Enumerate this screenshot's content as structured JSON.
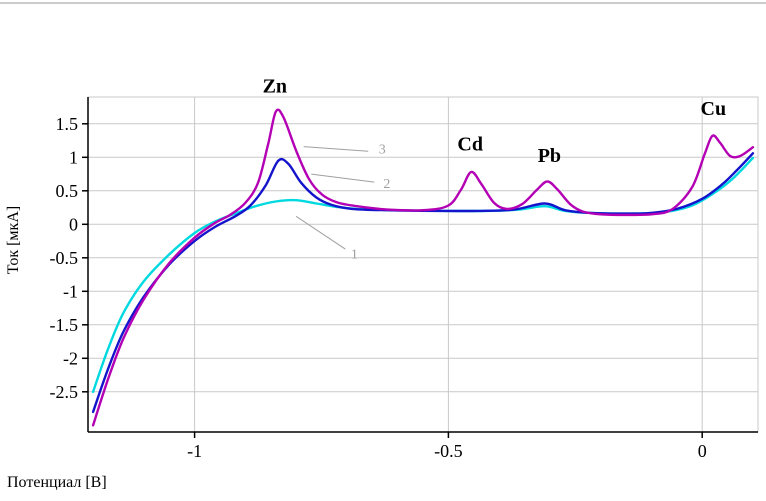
{
  "figure": {
    "top_border": true
  },
  "chart_data": {
    "type": "line",
    "title": "",
    "xlabel": "Потенциал [В]",
    "ylabel": "Ток [мкА]",
    "xlim": [
      -1.21,
      0.11
    ],
    "ylim": [
      -3.1,
      1.9
    ],
    "grid": true,
    "legend_position": "none",
    "colors": {
      "grid": "#c9c9c9",
      "axis": "#000000",
      "leader": "#9f9f9f",
      "background": "#ffffff"
    },
    "x_ticks": [
      {
        "v": -1,
        "label": "-1"
      },
      {
        "v": -0.5,
        "label": "-0.5"
      },
      {
        "v": 0,
        "label": "0"
      }
    ],
    "y_ticks": [
      {
        "v": 1.5,
        "label": "1.5"
      },
      {
        "v": 1,
        "label": "1"
      },
      {
        "v": 0.5,
        "label": "0.5"
      },
      {
        "v": 0,
        "label": "0"
      },
      {
        "v": -0.5,
        "label": "-0.5"
      },
      {
        "v": -1,
        "label": "-1"
      },
      {
        "v": -1.5,
        "label": "-1.5"
      },
      {
        "v": -2,
        "label": "-2"
      },
      {
        "v": -2.5,
        "label": "-2.5"
      }
    ],
    "series": [
      {
        "name": "1",
        "color": "#00d9e0",
        "points": [
          [
            -1.2,
            -2.5
          ],
          [
            -1.17,
            -1.85
          ],
          [
            -1.14,
            -1.32
          ],
          [
            -1.1,
            -0.85
          ],
          [
            -1.05,
            -0.45
          ],
          [
            -1.0,
            -0.13
          ],
          [
            -0.96,
            0.04
          ],
          [
            -0.92,
            0.16
          ],
          [
            -0.88,
            0.27
          ],
          [
            -0.84,
            0.34
          ],
          [
            -0.8,
            0.36
          ],
          [
            -0.76,
            0.31
          ],
          [
            -0.72,
            0.26
          ],
          [
            -0.68,
            0.23
          ],
          [
            -0.6,
            0.21
          ],
          [
            -0.5,
            0.2
          ],
          [
            -0.42,
            0.2
          ],
          [
            -0.36,
            0.22
          ],
          [
            -0.31,
            0.27
          ],
          [
            -0.27,
            0.2
          ],
          [
            -0.22,
            0.17
          ],
          [
            -0.15,
            0.16
          ],
          [
            -0.1,
            0.17
          ],
          [
            -0.06,
            0.2
          ],
          [
            -0.02,
            0.28
          ],
          [
            0.02,
            0.45
          ],
          [
            0.06,
            0.68
          ],
          [
            0.1,
            0.99
          ]
        ]
      },
      {
        "name": "2",
        "color": "#1414cc",
        "points": [
          [
            -1.2,
            -2.8
          ],
          [
            -1.17,
            -2.15
          ],
          [
            -1.14,
            -1.6
          ],
          [
            -1.1,
            -1.08
          ],
          [
            -1.05,
            -0.6
          ],
          [
            -1.0,
            -0.25
          ],
          [
            -0.96,
            -0.04
          ],
          [
            -0.92,
            0.12
          ],
          [
            -0.89,
            0.28
          ],
          [
            -0.86,
            0.58
          ],
          [
            -0.835,
            0.95
          ],
          [
            -0.815,
            0.9
          ],
          [
            -0.79,
            0.62
          ],
          [
            -0.76,
            0.4
          ],
          [
            -0.73,
            0.29
          ],
          [
            -0.69,
            0.23
          ],
          [
            -0.62,
            0.21
          ],
          [
            -0.52,
            0.2
          ],
          [
            -0.44,
            0.2
          ],
          [
            -0.37,
            0.22
          ],
          [
            -0.31,
            0.31
          ],
          [
            -0.27,
            0.21
          ],
          [
            -0.22,
            0.17
          ],
          [
            -0.15,
            0.16
          ],
          [
            -0.1,
            0.17
          ],
          [
            -0.05,
            0.23
          ],
          [
            0.0,
            0.38
          ],
          [
            0.04,
            0.6
          ],
          [
            0.07,
            0.82
          ],
          [
            0.1,
            1.06
          ]
        ]
      },
      {
        "name": "3",
        "color": "#b400b4",
        "points": [
          [
            -1.2,
            -3.0
          ],
          [
            -1.17,
            -2.3
          ],
          [
            -1.14,
            -1.7
          ],
          [
            -1.1,
            -1.12
          ],
          [
            -1.05,
            -0.58
          ],
          [
            -1.0,
            -0.2
          ],
          [
            -0.96,
            0.02
          ],
          [
            -0.93,
            0.14
          ],
          [
            -0.9,
            0.32
          ],
          [
            -0.875,
            0.62
          ],
          [
            -0.855,
            1.2
          ],
          [
            -0.84,
            1.68
          ],
          [
            -0.825,
            1.6
          ],
          [
            -0.8,
            1.1
          ],
          [
            -0.775,
            0.68
          ],
          [
            -0.75,
            0.45
          ],
          [
            -0.72,
            0.33
          ],
          [
            -0.68,
            0.27
          ],
          [
            -0.62,
            0.22
          ],
          [
            -0.55,
            0.21
          ],
          [
            -0.5,
            0.28
          ],
          [
            -0.475,
            0.52
          ],
          [
            -0.455,
            0.78
          ],
          [
            -0.435,
            0.6
          ],
          [
            -0.41,
            0.32
          ],
          [
            -0.385,
            0.23
          ],
          [
            -0.355,
            0.3
          ],
          [
            -0.325,
            0.52
          ],
          [
            -0.305,
            0.64
          ],
          [
            -0.285,
            0.52
          ],
          [
            -0.26,
            0.3
          ],
          [
            -0.235,
            0.19
          ],
          [
            -0.2,
            0.15
          ],
          [
            -0.15,
            0.14
          ],
          [
            -0.1,
            0.15
          ],
          [
            -0.06,
            0.22
          ],
          [
            -0.02,
            0.55
          ],
          [
            0.005,
            1.05
          ],
          [
            0.02,
            1.32
          ],
          [
            0.035,
            1.22
          ],
          [
            0.055,
            1.02
          ],
          [
            0.075,
            1.02
          ],
          [
            0.1,
            1.15
          ]
        ]
      }
    ],
    "peak_labels": [
      {
        "text": "Zn",
        "x": -0.842,
        "y": 1.97
      },
      {
        "text": "Cd",
        "x": -0.457,
        "y": 1.1
      },
      {
        "text": "Pb",
        "x": -0.301,
        "y": 0.93
      },
      {
        "text": "Cu",
        "x": 0.022,
        "y": 1.63
      }
    ],
    "series_labels": [
      {
        "text": "1",
        "x": -0.692,
        "y": -0.51,
        "line": [
          -0.8,
          0.12,
          -0.703,
          -0.37
        ]
      },
      {
        "text": "2",
        "x": -0.628,
        "y": 0.54,
        "line": [
          -0.77,
          0.75,
          -0.646,
          0.63
        ]
      },
      {
        "text": "3",
        "x": -0.637,
        "y": 1.06,
        "line": [
          -0.785,
          1.16,
          -0.658,
          1.09
        ]
      }
    ]
  }
}
